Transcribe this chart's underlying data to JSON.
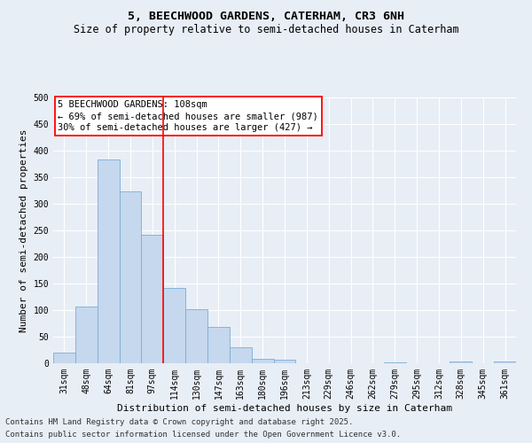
{
  "title": "5, BEECHWOOD GARDENS, CATERHAM, CR3 6NH",
  "subtitle": "Size of property relative to semi-detached houses in Caterham",
  "xlabel": "Distribution of semi-detached houses by size in Caterham",
  "ylabel": "Number of semi-detached properties",
  "footer_line1": "Contains HM Land Registry data © Crown copyright and database right 2025.",
  "footer_line2": "Contains public sector information licensed under the Open Government Licence v3.0.",
  "bin_labels": [
    "31sqm",
    "48sqm",
    "64sqm",
    "81sqm",
    "97sqm",
    "114sqm",
    "130sqm",
    "147sqm",
    "163sqm",
    "180sqm",
    "196sqm",
    "213sqm",
    "229sqm",
    "246sqm",
    "262sqm",
    "279sqm",
    "295sqm",
    "312sqm",
    "328sqm",
    "345sqm",
    "361sqm"
  ],
  "bar_values": [
    20,
    107,
    383,
    323,
    242,
    142,
    101,
    68,
    30,
    9,
    6,
    0,
    0,
    0,
    0,
    1,
    0,
    0,
    3,
    0,
    3
  ],
  "bar_color": "#c5d8ee",
  "bar_edgecolor": "#7aadd4",
  "redline_x": 4.5,
  "annotation_line1": "5 BEECHWOOD GARDENS: 108sqm",
  "annotation_line2": "← 69% of semi-detached houses are smaller (987)",
  "annotation_line3": "30% of semi-detached houses are larger (427) →",
  "ylim": [
    0,
    500
  ],
  "yticks": [
    0,
    50,
    100,
    150,
    200,
    250,
    300,
    350,
    400,
    450,
    500
  ],
  "background_color": "#e8eef6",
  "grid_color": "#ffffff",
  "title_fontsize": 9.5,
  "subtitle_fontsize": 8.5,
  "axis_label_fontsize": 8,
  "tick_fontsize": 7,
  "annotation_fontsize": 7.5,
  "footer_fontsize": 6.5
}
